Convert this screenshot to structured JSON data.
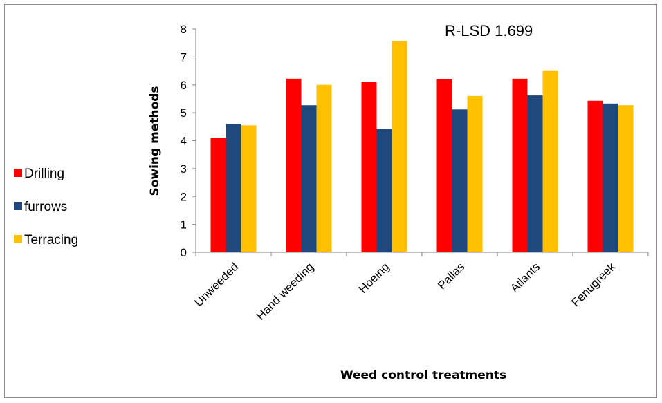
{
  "chart_data": {
    "type": "bar",
    "xlabel": "Weed control treatments",
    "ylabel": "Sowing methods",
    "ylim": [
      0,
      8
    ],
    "yticks": [
      "0",
      "1",
      "2",
      "3",
      "4",
      "5",
      "6",
      "7",
      "8"
    ],
    "grid": false,
    "legend_position": "left",
    "annotation": "R-LSD 1.699",
    "categories": [
      "Unweeded",
      "Hand weeding",
      "Hoeing",
      "Pallas",
      "Atlants",
      "Fenugreek"
    ],
    "series": [
      {
        "name": "Drilling",
        "color": "#ff0000",
        "values": [
          4.1,
          6.22,
          6.1,
          6.2,
          6.22,
          5.43
        ]
      },
      {
        "name": "furrows",
        "color": "#1f497d",
        "values": [
          4.6,
          5.27,
          4.42,
          5.12,
          5.62,
          5.33
        ]
      },
      {
        "name": "Terracing",
        "color": "#ffc000",
        "values": [
          4.55,
          6.0,
          7.57,
          5.6,
          6.52,
          5.27
        ]
      }
    ]
  }
}
